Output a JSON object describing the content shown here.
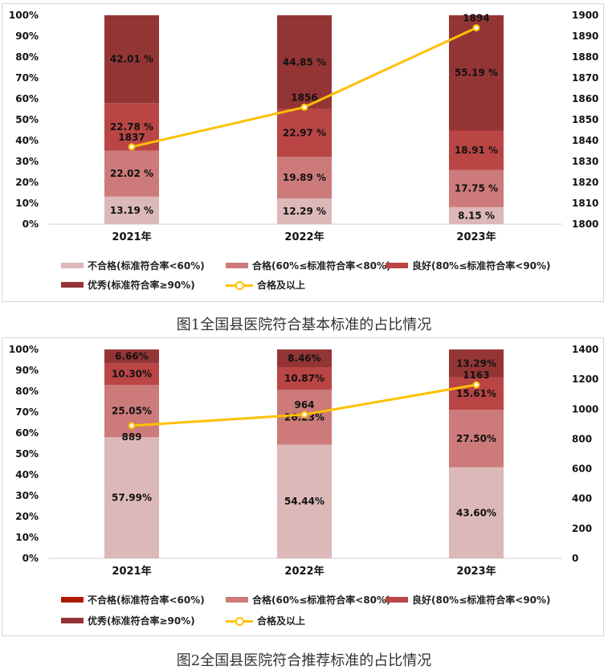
{
  "chart_data": [
    {
      "type": "bar",
      "stacked": true,
      "categories": [
        "2021年",
        "2022年",
        "2023年"
      ],
      "ylim": [
        0,
        100
      ],
      "yticks": [
        "0%",
        "10%",
        "20%",
        "30%",
        "40%",
        "50%",
        "60%",
        "70%",
        "80%",
        "90%",
        "100%"
      ],
      "y2lim": [
        1800,
        1900
      ],
      "y2ticks": [
        "1800",
        "1810",
        "1820",
        "1830",
        "1840",
        "1850",
        "1860",
        "1870",
        "1880",
        "1890",
        "1900"
      ],
      "series": [
        {
          "name": "不合格(标准符合率<60%)",
          "color": "#DDB8B8",
          "values": [
            13.19,
            12.29,
            8.15
          ],
          "labels": [
            "13.19 %",
            "12.29 %",
            "8.15 %"
          ]
        },
        {
          "name": "合格(60%≤标准符合率<80%)",
          "color": "#CC7A7A",
          "values": [
            22.02,
            19.89,
            17.75
          ],
          "labels": [
            "22.02 %",
            "19.89 %",
            "17.75 %"
          ]
        },
        {
          "name": "良好(80%≤标准符合率<90%)",
          "color": "#B94545",
          "values": [
            22.78,
            22.97,
            18.91
          ],
          "labels": [
            "22.78 %",
            "22.97 %",
            "18.91 %"
          ]
        },
        {
          "name": "优秀(标准符合率≥90%)",
          "color": "#943535",
          "values": [
            42.01,
            44.85,
            55.19
          ],
          "labels": [
            "42.01 %",
            "44.85 %",
            "55.19 %"
          ]
        }
      ],
      "line": {
        "name": "合格及以上",
        "color": "#FFC000",
        "values": [
          1837,
          1856,
          1894
        ],
        "labels": [
          "1837",
          "1856",
          "1894"
        ]
      },
      "legend_position": "bottom",
      "caption": "图1全国县医院符合基本标准的占比情况"
    },
    {
      "type": "bar",
      "stacked": true,
      "categories": [
        "2021年",
        "2022年",
        "2023年"
      ],
      "ylim": [
        0,
        100
      ],
      "yticks": [
        "0%",
        "10%",
        "20%",
        "30%",
        "40%",
        "50%",
        "60%",
        "70%",
        "80%",
        "90%",
        "100%"
      ],
      "y2lim": [
        0,
        1400
      ],
      "y2ticks": [
        "0",
        "200",
        "400",
        "600",
        "800",
        "1000",
        "1200",
        "1400"
      ],
      "series": [
        {
          "name": "不合格(标准符合率<60%)",
          "color": "#DDB8B8",
          "legend_color": "#AD1A00",
          "values": [
            57.99,
            54.44,
            43.6
          ],
          "labels": [
            "57.99%",
            "54.44%",
            "43.60%"
          ]
        },
        {
          "name": "合格(60%≤标准符合率<80%)",
          "color": "#CC7A7A",
          "values": [
            25.05,
            26.23,
            27.5
          ],
          "labels": [
            "25.05%",
            "26.23%",
            "27.50%"
          ]
        },
        {
          "name": "良好(80%≤标准符合率<90%)",
          "color": "#B94545",
          "values": [
            10.3,
            10.87,
            15.61
          ],
          "labels": [
            "10.30%",
            "10.87%",
            "15.61%"
          ]
        },
        {
          "name": "优秀(标准符合率≥90%)",
          "color": "#943535",
          "values": [
            6.66,
            8.46,
            13.29
          ],
          "labels": [
            "6.66%",
            "8.46%",
            "13.29%"
          ]
        }
      ],
      "line": {
        "name": "合格及以上",
        "color": "#FFC000",
        "values": [
          889,
          964,
          1163
        ],
        "labels": [
          "889",
          "964",
          "1163"
        ]
      },
      "legend_position": "bottom",
      "caption": "图2全国县医院符合推荐标准的占比情况"
    }
  ]
}
